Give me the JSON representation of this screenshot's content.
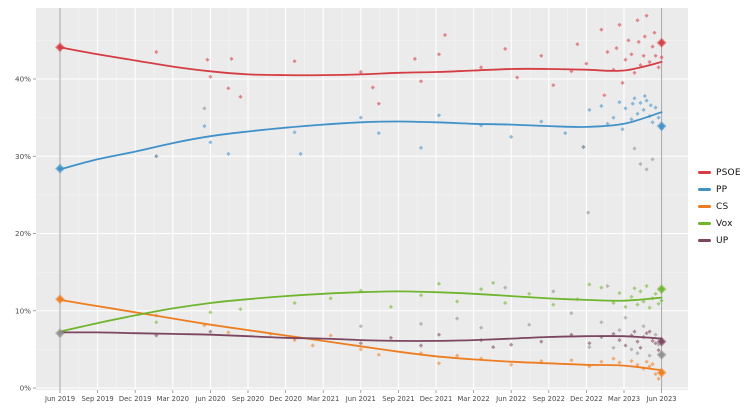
{
  "page": {
    "background": "#ffffff"
  },
  "chart_data": {
    "type": "scatter",
    "subtype": "poll-scatter-with-smoothed-trend-lines",
    "title": "",
    "xlabel": "",
    "ylabel": "",
    "x_ticks": [
      "Jun 2019",
      "Sep 2019",
      "Dec 2019",
      "Mar 2020",
      "Jun 2020",
      "Sep 2020",
      "Dec 2020",
      "Mar 2021",
      "Jun 2021",
      "Sep 2021",
      "Dec 2021",
      "Mar 2022",
      "Jun 2022",
      "Sep 2022",
      "Dec 2022",
      "Mar 2023",
      "Jun 2023"
    ],
    "y_ticks": [
      {
        "value": 0,
        "label": "0%"
      },
      {
        "value": 10,
        "label": "10%"
      },
      {
        "value": 20,
        "label": "20%"
      },
      {
        "value": 30,
        "label": "30%"
      },
      {
        "value": 40,
        "label": "40%"
      }
    ],
    "ylim": [
      0,
      49.3
    ],
    "grid": true,
    "legend_position": "right",
    "plot_bg": "#ebebeb",
    "grid_color": "#ffffff",
    "axis_text_color": "#4a4a4a",
    "tick_mark_color": "#8a8a8a",
    "reference_line_color": "#a6a6a6",
    "reference_lines_at": [
      "Jun 2019",
      "Jun 2023"
    ],
    "series": [
      {
        "name": "PSOE",
        "color": "#d53d44",
        "in_legend": true,
        "trend": [
          44.1,
          43.2,
          42.4,
          41.6,
          41.0,
          40.6,
          40.5,
          40.5,
          40.6,
          40.8,
          40.9,
          41.1,
          41.3,
          41.3,
          41.2,
          41.1,
          42.2
        ],
        "elections": [
          [
            0,
            44.1
          ],
          [
            1,
            44.7
          ]
        ],
        "polls": [
          [
            0.16,
            43.5
          ],
          [
            0.245,
            42.5
          ],
          [
            0.25,
            40.3
          ],
          [
            0.28,
            38.8
          ],
          [
            0.285,
            42.6
          ],
          [
            0.3,
            37.7
          ],
          [
            0.39,
            42.3
          ],
          [
            0.5,
            40.9
          ],
          [
            0.52,
            38.9
          ],
          [
            0.53,
            36.8
          ],
          [
            0.59,
            42.6
          ],
          [
            0.6,
            39.7
          ],
          [
            0.63,
            43.2
          ],
          [
            0.64,
            45.7
          ],
          [
            0.7,
            41.5
          ],
          [
            0.74,
            43.9
          ],
          [
            0.76,
            40.2
          ],
          [
            0.8,
            43.0
          ],
          [
            0.82,
            39.2
          ],
          [
            0.85,
            41.0
          ],
          [
            0.86,
            44.5
          ],
          [
            0.875,
            42.0
          ],
          [
            0.9,
            46.4
          ],
          [
            0.905,
            37.9
          ],
          [
            0.91,
            43.5
          ],
          [
            0.92,
            41.2
          ],
          [
            0.925,
            44.0
          ],
          [
            0.93,
            47.0
          ],
          [
            0.935,
            39.5
          ],
          [
            0.94,
            42.5
          ],
          [
            0.945,
            45.0
          ],
          [
            0.95,
            43.2
          ],
          [
            0.955,
            40.8
          ],
          [
            0.96,
            47.6
          ],
          [
            0.962,
            44.8
          ],
          [
            0.965,
            41.8
          ],
          [
            0.97,
            43.0
          ],
          [
            0.972,
            45.5
          ],
          [
            0.975,
            48.2
          ],
          [
            0.98,
            42.2
          ],
          [
            0.985,
            44.2
          ],
          [
            0.988,
            46.0
          ],
          [
            0.99,
            43.0
          ],
          [
            0.995,
            41.5
          ],
          [
            1.0,
            42.8
          ]
        ]
      },
      {
        "name": "PP",
        "color": "#4191c9",
        "in_legend": true,
        "trend": [
          28.3,
          29.6,
          30.6,
          31.7,
          32.6,
          33.2,
          33.7,
          34.1,
          34.4,
          34.5,
          34.4,
          34.2,
          34.1,
          33.9,
          33.8,
          34.2,
          35.7
        ],
        "elections": [
          [
            0,
            28.4
          ],
          [
            1,
            33.9
          ]
        ],
        "polls": [
          [
            0.16,
            30.0
          ],
          [
            0.24,
            33.9
          ],
          [
            0.25,
            31.8
          ],
          [
            0.28,
            30.3
          ],
          [
            0.39,
            33.1
          ],
          [
            0.4,
            30.3
          ],
          [
            0.5,
            35.0
          ],
          [
            0.53,
            33.0
          ],
          [
            0.6,
            31.1
          ],
          [
            0.63,
            35.3
          ],
          [
            0.7,
            34.0
          ],
          [
            0.75,
            32.5
          ],
          [
            0.8,
            34.5
          ],
          [
            0.84,
            33.0
          ],
          [
            0.87,
            31.2
          ],
          [
            0.88,
            36.0
          ],
          [
            0.9,
            36.5
          ],
          [
            0.91,
            34.2
          ],
          [
            0.92,
            35.0
          ],
          [
            0.93,
            37.0
          ],
          [
            0.935,
            33.5
          ],
          [
            0.94,
            36.2
          ],
          [
            0.95,
            34.8
          ],
          [
            0.952,
            36.8
          ],
          [
            0.955,
            37.5
          ],
          [
            0.96,
            35.5
          ],
          [
            0.965,
            36.9
          ],
          [
            0.97,
            36.0
          ],
          [
            0.972,
            37.8
          ],
          [
            0.975,
            37.2
          ],
          [
            0.98,
            35.2
          ],
          [
            0.982,
            36.6
          ],
          [
            0.985,
            34.4
          ],
          [
            0.99,
            36.3
          ],
          [
            0.995,
            35.0
          ],
          [
            1.0,
            33.6
          ]
        ]
      },
      {
        "name": "CS",
        "color": "#ed7d21",
        "in_legend": true,
        "trend": [
          11.4,
          10.6,
          9.8,
          9.0,
          8.2,
          7.5,
          6.8,
          6.1,
          5.4,
          4.7,
          4.1,
          3.7,
          3.4,
          3.2,
          3.0,
          2.9,
          2.3
        ],
        "elections": [
          [
            0,
            11.5
          ],
          [
            1,
            2.0
          ]
        ],
        "polls": [
          [
            0.16,
            9.4
          ],
          [
            0.24,
            8.1
          ],
          [
            0.28,
            7.2
          ],
          [
            0.35,
            7.0
          ],
          [
            0.39,
            6.2
          ],
          [
            0.42,
            5.5
          ],
          [
            0.45,
            6.8
          ],
          [
            0.5,
            5.0
          ],
          [
            0.53,
            4.3
          ],
          [
            0.6,
            4.5
          ],
          [
            0.63,
            3.2
          ],
          [
            0.66,
            4.2
          ],
          [
            0.7,
            3.8
          ],
          [
            0.75,
            3.0
          ],
          [
            0.8,
            3.5
          ],
          [
            0.85,
            3.6
          ],
          [
            0.88,
            2.8
          ],
          [
            0.9,
            3.4
          ],
          [
            0.92,
            3.8
          ],
          [
            0.93,
            3.3
          ],
          [
            0.95,
            3.5
          ],
          [
            0.96,
            3.0
          ],
          [
            0.97,
            2.5
          ],
          [
            0.975,
            3.4
          ],
          [
            0.98,
            2.8
          ],
          [
            0.985,
            3.1
          ],
          [
            0.99,
            1.8
          ],
          [
            0.995,
            1.2
          ],
          [
            1.0,
            2.0
          ]
        ]
      },
      {
        "name": "Vox",
        "color": "#6fb52e",
        "in_legend": true,
        "trend": [
          7.3,
          8.4,
          9.4,
          10.3,
          11.0,
          11.5,
          11.9,
          12.2,
          12.4,
          12.5,
          12.4,
          12.2,
          11.9,
          11.6,
          11.4,
          11.3,
          11.7
        ],
        "elections": [
          [
            1,
            12.8
          ]
        ],
        "polls": [
          [
            0.16,
            8.5
          ],
          [
            0.25,
            9.8
          ],
          [
            0.3,
            10.2
          ],
          [
            0.39,
            11.0
          ],
          [
            0.45,
            11.6
          ],
          [
            0.5,
            12.6
          ],
          [
            0.55,
            10.5
          ],
          [
            0.6,
            12.0
          ],
          [
            0.63,
            13.5
          ],
          [
            0.66,
            11.2
          ],
          [
            0.7,
            12.8
          ],
          [
            0.72,
            13.6
          ],
          [
            0.74,
            11.0
          ],
          [
            0.78,
            12.2
          ],
          [
            0.82,
            10.8
          ],
          [
            0.86,
            11.5
          ],
          [
            0.88,
            13.4
          ],
          [
            0.9,
            13.0
          ],
          [
            0.92,
            11.0
          ],
          [
            0.93,
            12.3
          ],
          [
            0.94,
            10.5
          ],
          [
            0.95,
            11.8
          ],
          [
            0.955,
            12.9
          ],
          [
            0.96,
            10.8
          ],
          [
            0.965,
            12.5
          ],
          [
            0.97,
            11.2
          ],
          [
            0.975,
            13.2
          ],
          [
            0.98,
            10.4
          ],
          [
            0.985,
            11.6
          ],
          [
            0.99,
            12.2
          ],
          [
            0.995,
            10.9
          ],
          [
            1.0,
            11.3
          ]
        ]
      },
      {
        "name": "UP",
        "color": "#7c4560",
        "in_legend": true,
        "trend": [
          7.2,
          7.2,
          7.1,
          7.0,
          6.9,
          6.7,
          6.5,
          6.4,
          6.2,
          6.1,
          6.1,
          6.2,
          6.4,
          6.6,
          6.7,
          6.7,
          6.4
        ],
        "elections": [
          [
            1,
            6.0
          ]
        ],
        "polls": [
          [
            0.16,
            6.8
          ],
          [
            0.25,
            7.3
          ],
          [
            0.39,
            6.5
          ],
          [
            0.5,
            5.8
          ],
          [
            0.55,
            6.5
          ],
          [
            0.6,
            5.5
          ],
          [
            0.63,
            6.9
          ],
          [
            0.7,
            6.2
          ],
          [
            0.72,
            5.3
          ],
          [
            0.75,
            5.6
          ],
          [
            0.8,
            6.0
          ],
          [
            0.85,
            6.9
          ],
          [
            0.88,
            5.8
          ],
          [
            0.9,
            6.6
          ],
          [
            0.92,
            7.0
          ],
          [
            0.93,
            6.2
          ],
          [
            0.94,
            5.5
          ],
          [
            0.95,
            6.8
          ],
          [
            0.955,
            7.3
          ],
          [
            0.96,
            6.0
          ],
          [
            0.965,
            5.2
          ],
          [
            0.97,
            6.6
          ],
          [
            0.975,
            7.1
          ],
          [
            0.98,
            7.3
          ],
          [
            0.985,
            6.1
          ],
          [
            0.99,
            5.8
          ],
          [
            0.995,
            4.9
          ],
          [
            1.0,
            6.2
          ]
        ]
      },
      {
        "name": "Other",
        "color": "#8e8e8e",
        "in_legend": false,
        "trend": [],
        "elections": [
          [
            0,
            7.1
          ],
          [
            1,
            4.3
          ]
        ],
        "polls": [
          [
            0.16,
            30.0
          ],
          [
            0.24,
            36.2
          ],
          [
            0.5,
            8.0
          ],
          [
            0.6,
            8.3
          ],
          [
            0.66,
            9.0
          ],
          [
            0.7,
            7.8
          ],
          [
            0.74,
            13.0
          ],
          [
            0.78,
            8.2
          ],
          [
            0.82,
            12.5
          ],
          [
            0.85,
            9.7
          ],
          [
            0.87,
            31.2
          ],
          [
            0.878,
            22.7
          ],
          [
            0.88,
            5.3
          ],
          [
            0.9,
            8.5
          ],
          [
            0.91,
            13.2
          ],
          [
            0.92,
            5.2
          ],
          [
            0.93,
            7.5
          ],
          [
            0.94,
            9.1
          ],
          [
            0.95,
            5.0
          ],
          [
            0.955,
            31.0
          ],
          [
            0.96,
            4.5
          ],
          [
            0.965,
            29.0
          ],
          [
            0.97,
            8.0
          ],
          [
            0.975,
            28.3
          ],
          [
            0.98,
            4.2
          ],
          [
            0.985,
            29.6
          ],
          [
            0.99,
            6.9
          ],
          [
            0.995,
            5.6
          ]
        ]
      }
    ]
  }
}
